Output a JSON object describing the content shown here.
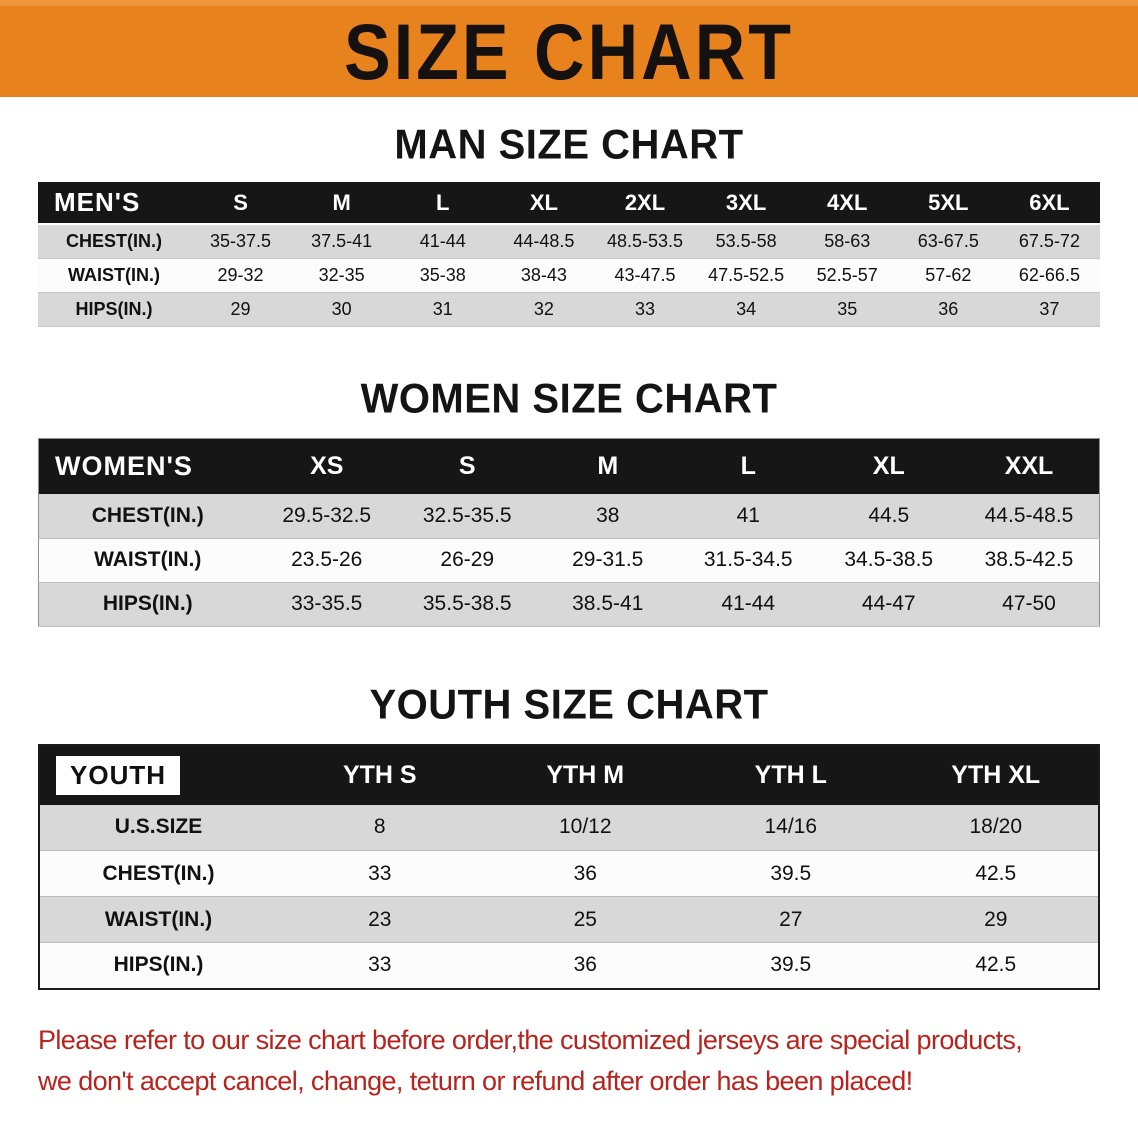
{
  "banner": {
    "title": "SIZE CHART"
  },
  "men": {
    "heading": "MAN SIZE CHART",
    "header": [
      "MEN'S",
      "S",
      "M",
      "L",
      "XL",
      "2XL",
      "3XL",
      "4XL",
      "5XL",
      "6XL"
    ],
    "rows": [
      {
        "label": "CHEST(IN.)",
        "values": [
          "35-37.5",
          "37.5-41",
          "41-44",
          "44-48.5",
          "48.5-53.5",
          "53.5-58",
          "58-63",
          "63-67.5",
          "67.5-72"
        ]
      },
      {
        "label": "WAIST(IN.)",
        "values": [
          "29-32",
          "32-35",
          "35-38",
          "38-43",
          "43-47.5",
          "47.5-52.5",
          "52.5-57",
          "57-62",
          "62-66.5"
        ]
      },
      {
        "label": "HIPS(IN.)",
        "values": [
          "29",
          "30",
          "31",
          "32",
          "33",
          "34",
          "35",
          "36",
          "37"
        ]
      }
    ]
  },
  "women": {
    "heading": "WOMEN SIZE CHART",
    "header": [
      "WOMEN'S",
      "XS",
      "S",
      "M",
      "L",
      "XL",
      "XXL"
    ],
    "rows": [
      {
        "label": "CHEST(IN.)",
        "values": [
          "29.5-32.5",
          "32.5-35.5",
          "38",
          "41",
          "44.5",
          "44.5-48.5"
        ]
      },
      {
        "label": "WAIST(IN.)",
        "values": [
          "23.5-26",
          "26-29",
          "29-31.5",
          "31.5-34.5",
          "34.5-38.5",
          "38.5-42.5"
        ]
      },
      {
        "label": "HIPS(IN.)",
        "values": [
          "33-35.5",
          "35.5-38.5",
          "38.5-41",
          "41-44",
          "44-47",
          "47-50"
        ]
      }
    ]
  },
  "youth": {
    "heading": "YOUTH SIZE CHART",
    "corner_chip": true,
    "header": [
      "YOUTH",
      "YTH S",
      "YTH M",
      "YTH L",
      "YTH XL"
    ],
    "rows": [
      {
        "label": "U.S.SIZE",
        "values": [
          "8",
          "10/12",
          "14/16",
          "18/20"
        ]
      },
      {
        "label": "CHEST(IN.)",
        "values": [
          "33",
          "36",
          "39.5",
          "42.5"
        ]
      },
      {
        "label": "WAIST(IN.)",
        "values": [
          "23",
          "25",
          "27",
          "29"
        ]
      },
      {
        "label": "HIPS(IN.)",
        "values": [
          "33",
          "36",
          "39.5",
          "42.5"
        ]
      }
    ]
  },
  "disclaimer": {
    "line1": "Please refer to our size chart before order,the customized jerseys are special products,",
    "line2": "we don't accept cancel, change, teturn or refund after order has been placed!"
  },
  "colors": {
    "banner_bg": "#E8821D",
    "header_bg": "#161616",
    "row_alt": "#D8D8D8",
    "disclaimer_red": "#B9231E"
  }
}
